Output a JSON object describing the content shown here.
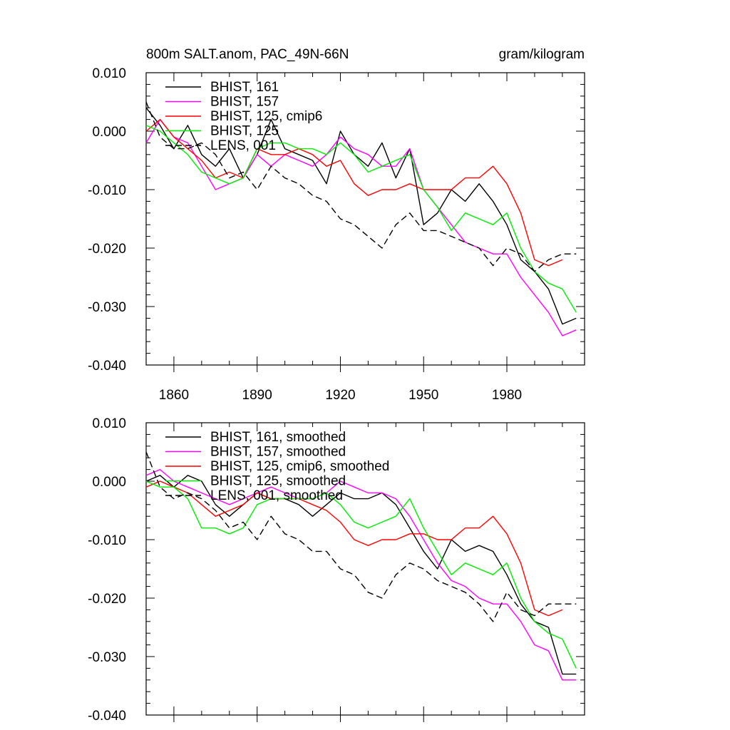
{
  "chart_data": [
    {
      "type": "line",
      "title_left": "800m SALT.anom, PAC_49N-66N",
      "title_right": "gram/kilogram",
      "xlim": [
        1850,
        2008
      ],
      "ylim": [
        -0.04,
        0.01
      ],
      "yticks": [
        "0.010",
        "0.000",
        "-0.010",
        "-0.020",
        "-0.030",
        "-0.040"
      ],
      "xticks": [
        "1860",
        "1890",
        "1920",
        "1950",
        "1980"
      ],
      "series": [
        {
          "name": "BHIST, 161",
          "color": "#000000",
          "dash": false,
          "x": [
            1850,
            1855,
            1860,
            1865,
            1870,
            1875,
            1880,
            1885,
            1890,
            1895,
            1900,
            1905,
            1910,
            1915,
            1920,
            1925,
            1930,
            1935,
            1940,
            1945,
            1950,
            1955,
            1960,
            1965,
            1970,
            1975,
            1980,
            1985,
            1990,
            1995,
            2000,
            2005
          ],
          "y": [
            0.004,
            0.001,
            -0.003,
            0.001,
            -0.004,
            -0.006,
            -0.003,
            -0.008,
            -0.004,
            0.002,
            -0.003,
            -0.004,
            -0.005,
            -0.009,
            0.0,
            -0.004,
            -0.006,
            -0.002,
            -0.008,
            -0.003,
            -0.016,
            -0.014,
            -0.01,
            -0.012,
            -0.009,
            -0.012,
            -0.016,
            -0.022,
            -0.024,
            -0.027,
            -0.033,
            -0.032
          ]
        },
        {
          "name": "BHIST, 157",
          "color": "#ff00ff",
          "dash": false,
          "x": [
            1850,
            1855,
            1860,
            1865,
            1870,
            1875,
            1880,
            1885,
            1890,
            1895,
            1900,
            1905,
            1910,
            1915,
            1920,
            1925,
            1930,
            1935,
            1940,
            1945,
            1950,
            1955,
            1960,
            1965,
            1970,
            1975,
            1980,
            1985,
            1990,
            1995,
            2000,
            2005
          ],
          "y": [
            -0.002,
            0.002,
            -0.001,
            -0.002,
            -0.006,
            -0.01,
            -0.009,
            -0.008,
            -0.004,
            -0.006,
            -0.004,
            -0.005,
            -0.006,
            -0.004,
            -0.001,
            -0.003,
            -0.004,
            -0.006,
            -0.006,
            -0.003,
            -0.01,
            -0.013,
            -0.016,
            -0.019,
            -0.02,
            -0.021,
            -0.021,
            -0.025,
            -0.028,
            -0.031,
            -0.035,
            -0.034
          ]
        },
        {
          "name": "BHIST, 125, cmip6",
          "color": "#ff0000",
          "dash": false,
          "x": [
            1850,
            1855,
            1860,
            1865,
            1870,
            1875,
            1880,
            1885,
            1890,
            1895,
            1900,
            1905,
            1910,
            1915,
            1920,
            1925,
            1930,
            1935,
            1940,
            1945,
            1950,
            1955,
            1960,
            1965,
            1970,
            1975,
            1980,
            1985,
            1990,
            1995,
            2000
          ],
          "y": [
            0.0,
            0.002,
            -0.001,
            -0.003,
            -0.005,
            -0.008,
            -0.007,
            -0.008,
            -0.003,
            -0.004,
            -0.004,
            -0.003,
            -0.004,
            -0.006,
            -0.005,
            -0.009,
            -0.011,
            -0.01,
            -0.01,
            -0.009,
            -0.01,
            -0.01,
            -0.01,
            -0.008,
            -0.008,
            -0.006,
            -0.009,
            -0.014,
            -0.022,
            -0.023,
            -0.022
          ]
        },
        {
          "name": "BHIST, 125",
          "color": "#00ee00",
          "dash": false,
          "x": [
            1850,
            1855,
            1860,
            1865,
            1870,
            1875,
            1880,
            1885,
            1890,
            1895,
            1900,
            1905,
            1910,
            1915,
            1920,
            1925,
            1930,
            1935,
            1940,
            1945,
            1950,
            1955,
            1960,
            1965,
            1970,
            1975,
            1980,
            1985,
            1990,
            1995,
            2000,
            2005
          ],
          "y": [
            0.001,
            0.0,
            -0.002,
            -0.004,
            -0.007,
            -0.008,
            -0.009,
            -0.008,
            -0.003,
            -0.002,
            -0.002,
            -0.003,
            -0.003,
            -0.004,
            -0.002,
            -0.004,
            -0.007,
            -0.006,
            -0.005,
            -0.004,
            -0.01,
            -0.013,
            -0.017,
            -0.014,
            -0.015,
            -0.016,
            -0.014,
            -0.02,
            -0.024,
            -0.026,
            -0.027,
            -0.031
          ]
        },
        {
          "name": "LENS, 001",
          "color": "#000000",
          "dash": true,
          "x": [
            1850,
            1855,
            1860,
            1865,
            1870,
            1875,
            1880,
            1885,
            1890,
            1895,
            1900,
            1905,
            1910,
            1915,
            1920,
            1925,
            1930,
            1935,
            1940,
            1945,
            1950,
            1955,
            1960,
            1965,
            1970,
            1975,
            1980,
            1985,
            1990,
            1995,
            2000,
            2005
          ],
          "y": [
            0.005,
            -0.001,
            -0.003,
            -0.003,
            -0.002,
            -0.004,
            -0.008,
            -0.007,
            -0.01,
            -0.006,
            -0.008,
            -0.009,
            -0.011,
            -0.012,
            -0.015,
            -0.016,
            -0.018,
            -0.02,
            -0.016,
            -0.014,
            -0.017,
            -0.017,
            -0.018,
            -0.019,
            -0.02,
            -0.023,
            -0.02,
            -0.021,
            -0.024,
            -0.022,
            -0.021,
            -0.021
          ]
        }
      ]
    },
    {
      "type": "line",
      "xlim": [
        1850,
        2008
      ],
      "ylim": [
        -0.04,
        0.01
      ],
      "yticks": [
        "0.010",
        "0.000",
        "-0.010",
        "-0.020",
        "-0.030",
        "-0.040"
      ],
      "series": [
        {
          "name": "BHIST, 161, smoothed",
          "color": "#000000",
          "dash": false,
          "x": [
            1850,
            1855,
            1860,
            1865,
            1870,
            1875,
            1880,
            1885,
            1890,
            1895,
            1900,
            1905,
            1910,
            1915,
            1920,
            1925,
            1930,
            1935,
            1940,
            1945,
            1950,
            1955,
            1960,
            1965,
            1970,
            1975,
            1980,
            1985,
            1990,
            1995,
            2000,
            2005
          ],
          "y": [
            0.0,
            0.001,
            -0.001,
            0.001,
            0.0,
            -0.004,
            -0.006,
            -0.004,
            -0.002,
            -0.003,
            -0.003,
            -0.004,
            -0.006,
            -0.004,
            -0.002,
            -0.003,
            -0.003,
            -0.002,
            -0.004,
            -0.008,
            -0.012,
            -0.015,
            -0.01,
            -0.012,
            -0.011,
            -0.012,
            -0.016,
            -0.021,
            -0.024,
            -0.025,
            -0.033,
            -0.033
          ]
        },
        {
          "name": "BHIST, 157, smoothed",
          "color": "#ff00ff",
          "dash": false,
          "x": [
            1850,
            1855,
            1860,
            1865,
            1870,
            1875,
            1880,
            1885,
            1890,
            1895,
            1900,
            1905,
            1910,
            1915,
            1920,
            1925,
            1930,
            1935,
            1940,
            1945,
            1950,
            1955,
            1960,
            1965,
            1970,
            1975,
            1980,
            1985,
            1990,
            1995,
            2000,
            2005
          ],
          "y": [
            0.001,
            0.002,
            0.0,
            -0.001,
            -0.002,
            -0.003,
            -0.004,
            -0.003,
            -0.002,
            -0.001,
            -0.002,
            -0.003,
            -0.003,
            -0.002,
            0.0,
            -0.001,
            -0.002,
            -0.002,
            -0.003,
            -0.006,
            -0.01,
            -0.014,
            -0.017,
            -0.018,
            -0.02,
            -0.021,
            -0.021,
            -0.024,
            -0.028,
            -0.029,
            -0.034,
            -0.034
          ]
        },
        {
          "name": "BHIST, 125, cmip6, smoothed",
          "color": "#ff0000",
          "dash": false,
          "x": [
            1850,
            1855,
            1860,
            1865,
            1870,
            1875,
            1880,
            1885,
            1890,
            1895,
            1900,
            1905,
            1910,
            1915,
            1920,
            1925,
            1930,
            1935,
            1940,
            1945,
            1950,
            1955,
            1960,
            1965,
            1970,
            1975,
            1980,
            1985,
            1990,
            1995,
            2000
          ],
          "y": [
            -0.001,
            0.0,
            -0.001,
            -0.002,
            -0.004,
            -0.006,
            -0.005,
            -0.004,
            -0.002,
            -0.003,
            -0.003,
            -0.003,
            -0.004,
            -0.005,
            -0.007,
            -0.01,
            -0.011,
            -0.01,
            -0.01,
            -0.009,
            -0.009,
            -0.01,
            -0.01,
            -0.008,
            -0.008,
            -0.006,
            -0.009,
            -0.014,
            -0.022,
            -0.023,
            -0.022
          ]
        },
        {
          "name": "BHIST, 125, smoothed",
          "color": "#00ee00",
          "dash": false,
          "x": [
            1850,
            1855,
            1860,
            1865,
            1870,
            1875,
            1880,
            1885,
            1890,
            1895,
            1900,
            1905,
            1910,
            1915,
            1920,
            1925,
            1930,
            1935,
            1940,
            1945,
            1950,
            1955,
            1960,
            1965,
            1970,
            1975,
            1980,
            1985,
            1990,
            1995,
            2000,
            2005
          ],
          "y": [
            0.0,
            -0.001,
            -0.001,
            -0.003,
            -0.008,
            -0.008,
            -0.009,
            -0.008,
            -0.004,
            -0.003,
            -0.003,
            -0.003,
            -0.003,
            -0.002,
            -0.004,
            -0.007,
            -0.008,
            -0.007,
            -0.006,
            -0.003,
            -0.008,
            -0.012,
            -0.016,
            -0.014,
            -0.015,
            -0.016,
            -0.014,
            -0.02,
            -0.024,
            -0.026,
            -0.027,
            -0.032
          ]
        },
        {
          "name": "LENS, 001, smoothed",
          "color": "#000000",
          "dash": true,
          "x": [
            1850,
            1855,
            1860,
            1865,
            1870,
            1875,
            1880,
            1885,
            1890,
            1895,
            1900,
            1905,
            1910,
            1915,
            1920,
            1925,
            1930,
            1935,
            1940,
            1945,
            1950,
            1955,
            1960,
            1965,
            1970,
            1975,
            1980,
            1985,
            1990,
            1995,
            2000,
            2005
          ],
          "y": [
            0.005,
            -0.001,
            -0.003,
            -0.002,
            -0.003,
            -0.005,
            -0.008,
            -0.007,
            -0.01,
            -0.006,
            -0.009,
            -0.01,
            -0.012,
            -0.012,
            -0.015,
            -0.016,
            -0.019,
            -0.02,
            -0.016,
            -0.014,
            -0.015,
            -0.017,
            -0.018,
            -0.019,
            -0.021,
            -0.024,
            -0.019,
            -0.022,
            -0.023,
            -0.021,
            -0.021,
            -0.021
          ]
        }
      ]
    }
  ]
}
